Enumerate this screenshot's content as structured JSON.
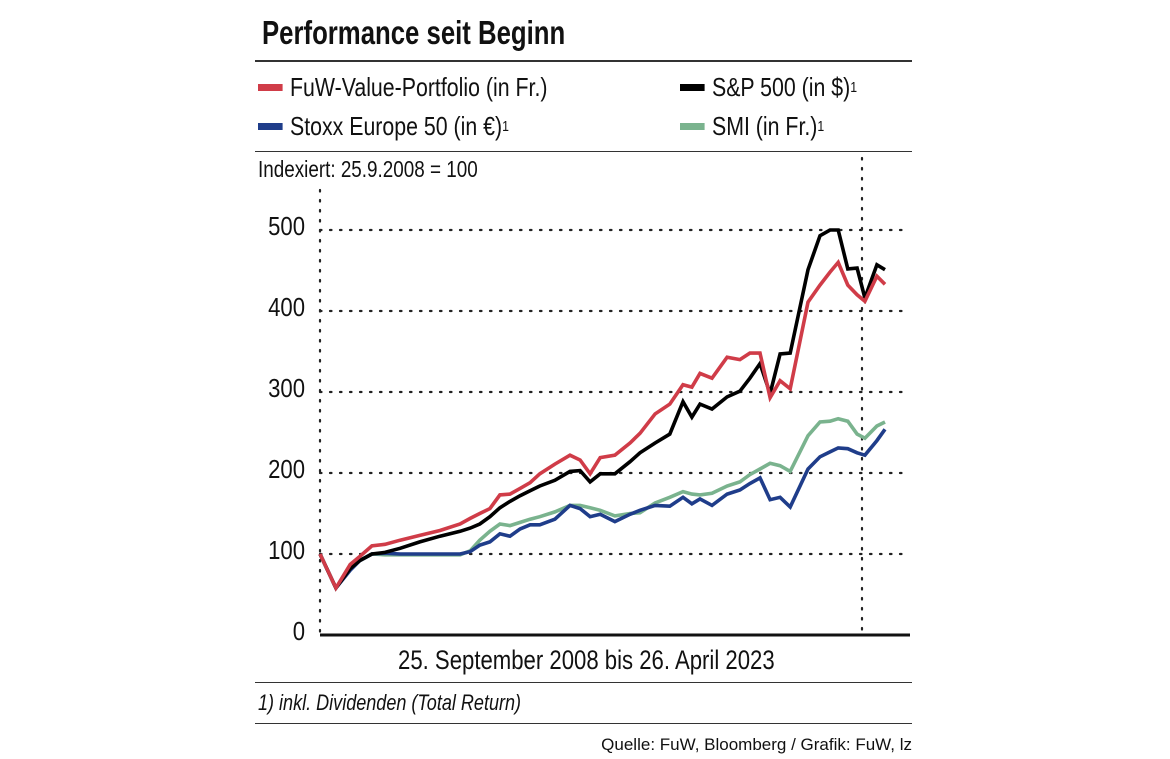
{
  "chart_data": {
    "type": "line",
    "title": "Performance seit Beginn",
    "subtitle": "Indexiert: 25.9.2008 = 100",
    "xlabel": "25. September 2008 bis 26. April 2023",
    "ylabel": "",
    "ylim": [
      0,
      500
    ],
    "yticks": [
      "0",
      "100",
      "200",
      "300",
      "400",
      "500"
    ],
    "grid": true,
    "legend_position": "top",
    "x": [
      2008.73,
      2009.14,
      2009.51,
      2009.76,
      2010.07,
      2010.41,
      2010.8,
      2011.31,
      2011.83,
      2012.35,
      2012.61,
      2012.86,
      2013.12,
      2013.38,
      2013.64,
      2013.9,
      2014.16,
      2014.41,
      2014.8,
      2015.19,
      2015.45,
      2015.71,
      2015.97,
      2016.35,
      2016.74,
      2017.0,
      2017.39,
      2017.77,
      2018.11,
      2018.34,
      2018.55,
      2018.86,
      2019.25,
      2019.58,
      2019.84,
      2020.1,
      2020.36,
      2020.62,
      2020.88,
      2021.34,
      2021.65,
      2021.91,
      2022.12,
      2022.37,
      2022.61,
      2022.81,
      2023.12,
      2023.33
    ],
    "series": [
      {
        "name": "FuW-Value-Portfolio (in Fr.)",
        "sup": "",
        "color": "#d03c48",
        "values": [
          100,
          58,
          87,
          97,
          110,
          112,
          117,
          123,
          129,
          137,
          144,
          150,
          156,
          173,
          174,
          181,
          188,
          199,
          211,
          222,
          216,
          199,
          219,
          222,
          237,
          249,
          273,
          285,
          309,
          306,
          323,
          317,
          343,
          340,
          348,
          348,
          293,
          314,
          304,
          411,
          432,
          448,
          460,
          432,
          420,
          412,
          443,
          433
        ]
      },
      {
        "name": "S&P 500 (in $)",
        "sup": "1",
        "color": "#000000",
        "values": [
          100,
          58,
          82,
          92,
          100,
          102,
          107,
          115,
          122,
          128,
          132,
          137,
          146,
          157,
          165,
          172,
          178,
          184,
          191,
          202,
          203,
          189,
          199,
          199,
          214,
          225,
          237,
          248,
          288,
          269,
          285,
          279,
          294,
          301,
          317,
          335,
          298,
          347,
          348,
          451,
          493,
          500,
          500,
          452,
          453,
          416,
          457,
          451
        ]
      },
      {
        "name": "Stoxx Europe 50 (in €)",
        "sup": "1",
        "color": "#1f3d8a",
        "values": [
          100,
          58,
          80,
          92,
          100,
          101,
          100,
          100,
          100,
          100,
          103,
          111,
          115,
          125,
          122,
          131,
          136,
          136,
          143,
          160,
          156,
          146,
          149,
          140,
          149,
          154,
          160,
          159,
          170,
          162,
          168,
          160,
          174,
          179,
          187,
          194,
          167,
          170,
          158,
          205,
          220,
          226,
          231,
          230,
          225,
          222,
          240,
          254
        ]
      },
      {
        "name": "SMI (in Fr.)",
        "sup": "1",
        "color": "#7ab38e",
        "values": [
          100,
          58,
          82,
          92,
          100,
          99,
          99,
          99,
          99,
          99,
          104,
          117,
          128,
          137,
          135,
          139,
          143,
          146,
          152,
          160,
          160,
          157,
          154,
          147,
          150,
          151,
          163,
          170,
          177,
          174,
          173,
          175,
          184,
          189,
          198,
          205,
          212,
          209,
          202,
          246,
          263,
          264,
          267,
          264,
          248,
          243,
          258,
          263
        ]
      }
    ],
    "footnote": "1) inkl. Dividenden (Total Return)",
    "source": "Quelle: FuW, Bloomberg / Grafik: FuW, lz"
  }
}
